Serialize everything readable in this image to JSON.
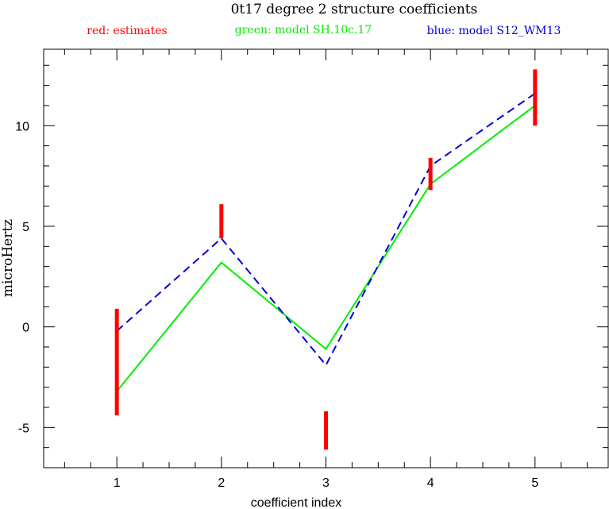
{
  "chart_data": {
    "type": "line",
    "title": "0t17 degree 2 structure coefficients",
    "xlabel": "coefficient index",
    "ylabel": "microHertz",
    "xlim": [
      0.3,
      5.7
    ],
    "ylim": [
      -7,
      13.8
    ],
    "x_ticks": [
      1,
      2,
      3,
      4,
      5
    ],
    "y_ticks": [
      -5,
      0,
      5,
      10
    ],
    "grid": false,
    "legend_position": "top",
    "legend": [
      {
        "text": "red: estimates",
        "color": "#ff0000"
      },
      {
        "text": "green: model SH.10c.17",
        "color": "#00ee00"
      },
      {
        "text": "blue: model S12_WM13",
        "color": "#0000dd"
      }
    ],
    "estimates": {
      "color": "#ff0000",
      "x": [
        1,
        2,
        3,
        4,
        5
      ],
      "low": [
        -4.4,
        4.4,
        -6.1,
        6.8,
        10.0
      ],
      "high": [
        0.9,
        6.1,
        -4.2,
        8.4,
        12.8
      ]
    },
    "series": [
      {
        "color": "#00ee00",
        "style": "solid",
        "x": [
          1,
          2,
          3,
          4,
          5
        ],
        "values": [
          -3.2,
          3.2,
          -1.1,
          7.1,
          11.0
        ]
      },
      {
        "color": "#0000dd",
        "style": "dashed",
        "x": [
          1,
          2,
          3,
          4,
          5
        ],
        "values": [
          -0.2,
          4.4,
          -1.9,
          8.0,
          11.6
        ]
      }
    ]
  }
}
